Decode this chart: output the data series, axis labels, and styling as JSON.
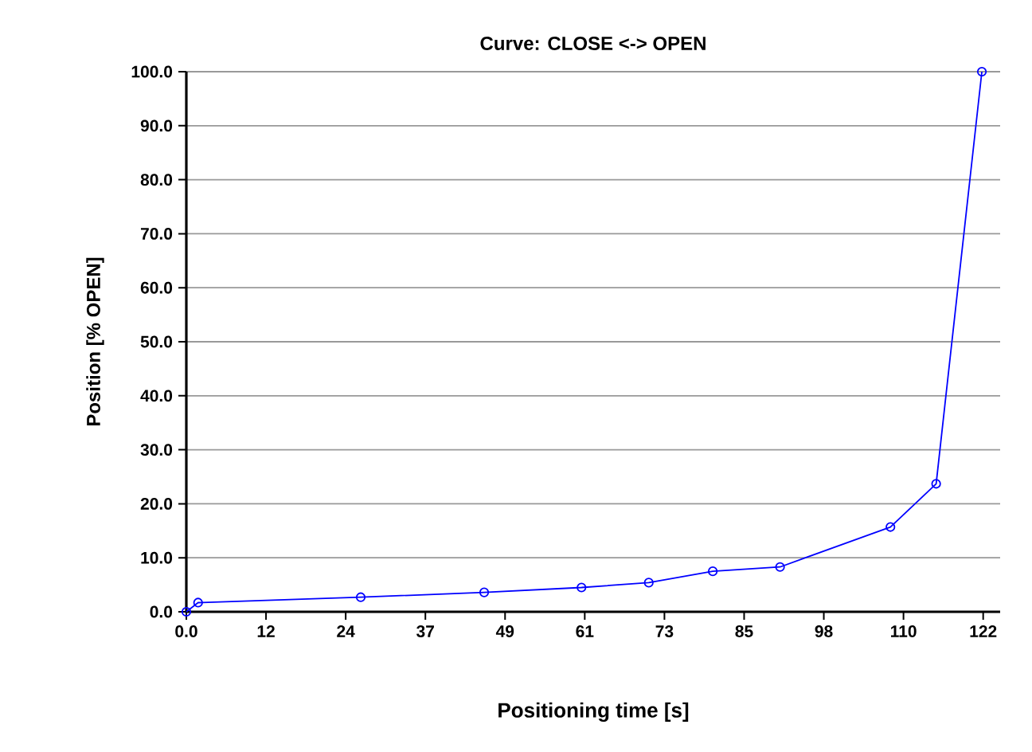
{
  "chart_data": {
    "type": "line",
    "title": "Curve: CLOSE <-> OPEN",
    "xlabel": "Positioning time [s]",
    "ylabel": "Position [% OPEN]",
    "x": [
      0,
      1.8,
      26.7,
      45.6,
      60.5,
      70.8,
      80.6,
      90.9,
      107.8,
      114.8,
      121.8
    ],
    "series": [
      {
        "color": "#0000ff",
        "values": [
          0,
          1.7,
          2.7,
          3.6,
          4.5,
          5.4,
          7.5,
          8.3,
          15.7,
          23.7,
          100
        ]
      }
    ],
    "xlim": [
      0,
      124.6
    ],
    "ylim": [
      0,
      100
    ],
    "xticks": [
      {
        "value": 0,
        "label": "0.0"
      },
      {
        "value": 12.2,
        "label": "12"
      },
      {
        "value": 24.4,
        "label": "24"
      },
      {
        "value": 36.6,
        "label": "37"
      },
      {
        "value": 48.8,
        "label": "49"
      },
      {
        "value": 61,
        "label": "61"
      },
      {
        "value": 73.2,
        "label": "73"
      },
      {
        "value": 85.4,
        "label": "85"
      },
      {
        "value": 97.6,
        "label": "98"
      },
      {
        "value": 109.8,
        "label": "110"
      },
      {
        "value": 122,
        "label": "122"
      }
    ],
    "yticks": [
      {
        "value": 0,
        "label": "0.0"
      },
      {
        "value": 10,
        "label": "10.0"
      },
      {
        "value": 20,
        "label": "20.0"
      },
      {
        "value": 30,
        "label": "30.0"
      },
      {
        "value": 40,
        "label": "40.0"
      },
      {
        "value": 50,
        "label": "50.0"
      },
      {
        "value": 60,
        "label": "60.0"
      },
      {
        "value": 70,
        "label": "70.0"
      },
      {
        "value": 80,
        "label": "80.0"
      },
      {
        "value": 90,
        "label": "90.0"
      },
      {
        "value": 100,
        "label": "100.0"
      }
    ],
    "grid": "y",
    "marker": "circle",
    "line_style": "solid"
  }
}
